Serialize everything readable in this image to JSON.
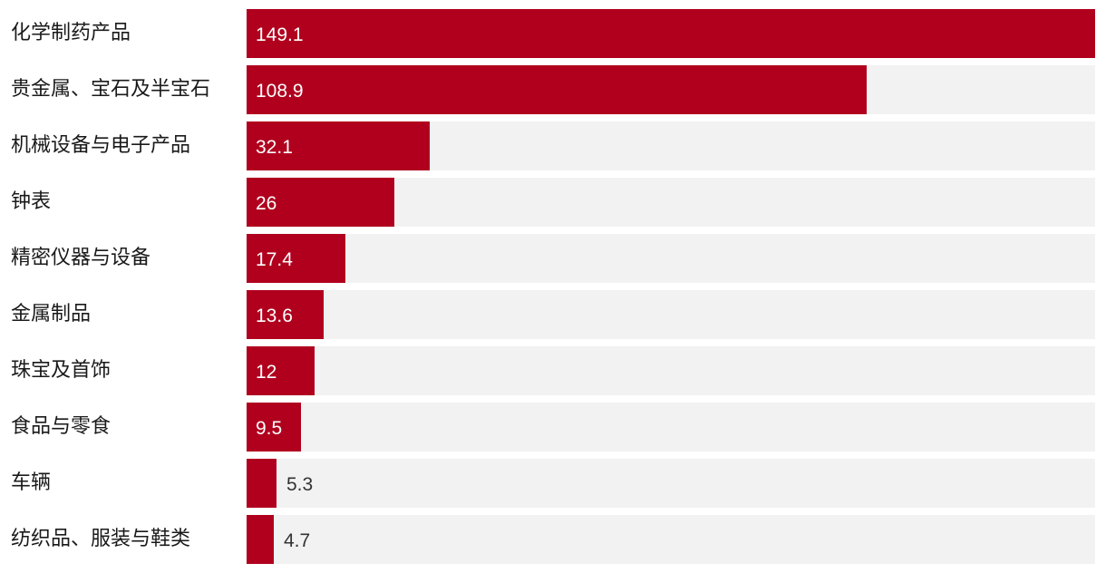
{
  "chart_data": {
    "type": "bar",
    "orientation": "horizontal",
    "title": "",
    "xlabel": "",
    "ylabel": "",
    "grid": false,
    "xlim": [
      0,
      149.1
    ],
    "categories": [
      "化学制药产品",
      "贵金属、宝石及半宝石",
      "机械设备与电子产品",
      "钟表",
      "精密仪器与设备",
      "金属制品",
      "珠宝及首饰",
      "食品与零食",
      "车辆",
      "纺织品、服装与鞋类"
    ],
    "values": [
      149.1,
      108.9,
      32.1,
      26,
      17.4,
      13.6,
      12,
      9.5,
      5.3,
      4.7
    ],
    "value_labels": [
      "149.1",
      "108.9",
      "32.1",
      "26",
      "17.4",
      "13.6",
      "12",
      "9.5",
      "5.3",
      "4.7"
    ],
    "colors": {
      "bar": "#b0001e",
      "track": "#f2f2f2"
    }
  }
}
